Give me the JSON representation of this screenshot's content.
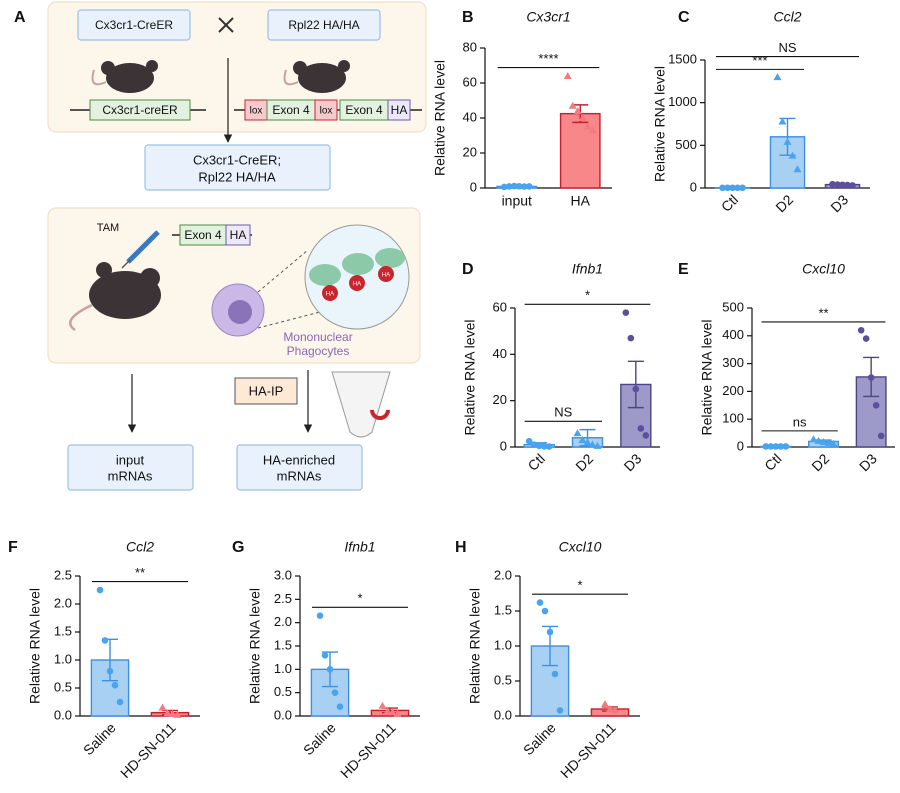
{
  "diagram": {
    "panel": "A",
    "cross": {
      "left": "Cx3cr1-CreER",
      "right": "Rpl22 HA/HA"
    },
    "construct_left": "Cx3cr1-creER",
    "construct_right": [
      "lox",
      "Exon 4",
      "lox",
      "Exon 4",
      "HA"
    ],
    "offspring": [
      "Cx3cr1-CreER;",
      "Rpl22 HA/HA"
    ],
    "treatment": "TAM",
    "tag_construct": [
      "Exon 4",
      "HA"
    ],
    "ribosome_tags": [
      "HA",
      "HA",
      "HA"
    ],
    "cell_label": [
      "Mononuclear",
      "Phagocytes"
    ],
    "ip": "HA-IP",
    "outputs": [
      [
        "input",
        "mRNAs"
      ],
      [
        "HA-enriched",
        "mRNAs"
      ]
    ]
  },
  "chart_data": [
    {
      "type": "bar",
      "panel": "B",
      "title": "Cx3cr1",
      "ylabel": "Relative RNA level",
      "categories": [
        "input",
        "HA"
      ],
      "values": [
        0.9,
        42.5
      ],
      "errors": [
        0.2,
        5
      ],
      "points": [
        [
          0.6,
          0.9,
          1.1,
          1.0,
          0.8,
          0.9
        ],
        [
          64,
          47,
          44,
          40,
          35,
          33
        ]
      ],
      "fills": [
        "#bfe0fb",
        "#f8878a"
      ],
      "strokes": [
        "#3d8fe0",
        "#c81e2a"
      ],
      "point_colors": [
        "#4aa3ef",
        "#f47a82"
      ],
      "markers": [
        "circle",
        "triangle"
      ],
      "ylim": [
        0,
        80
      ],
      "yticks": [
        0,
        20,
        40,
        60,
        80
      ],
      "significance": [
        {
          "from": 0,
          "to": 1,
          "label": "****"
        }
      ]
    },
    {
      "type": "bar",
      "panel": "C",
      "title": "Ccl2",
      "ylabel": "Relative RNA level",
      "categories": [
        "Ctl",
        "D2",
        "D3"
      ],
      "values": [
        3,
        600,
        40
      ],
      "errors": [
        1,
        215,
        8
      ],
      "points": [
        [
          3,
          3,
          3,
          3,
          3
        ],
        [
          1300,
          780,
          540,
          380,
          220
        ],
        [
          45,
          40,
          38,
          35,
          30
        ]
      ],
      "fills": [
        "#bfe0fb",
        "#a8d0f2",
        "#9d99c9"
      ],
      "strokes": [
        "#3d8fe0",
        "#3d8fe0",
        "#4b4583"
      ],
      "point_colors": [
        "#4aa3ef",
        "#4aa3ef",
        "#5c4f9c"
      ],
      "markers": [
        "circle",
        "triangle",
        "circle"
      ],
      "ylim": [
        0,
        1500
      ],
      "yticks": [
        0,
        500,
        1000,
        1500
      ],
      "significance": [
        {
          "from": 0,
          "to": 1,
          "label": "***"
        },
        {
          "from": 0,
          "to": 2,
          "label": "NS"
        }
      ]
    },
    {
      "type": "bar",
      "panel": "D",
      "title": "Ifnb1",
      "ylabel": "Relative RNA level",
      "categories": [
        "Ctl",
        "D2",
        "D3"
      ],
      "values": [
        1,
        4,
        27
      ],
      "errors": [
        0.8,
        3.5,
        10
      ],
      "points": [
        [
          2.5,
          1,
          0.5,
          0.3,
          0.2
        ],
        [
          6,
          3,
          2,
          1,
          0.5
        ],
        [
          58,
          47,
          25,
          8,
          5
        ]
      ],
      "fills": [
        "#bfe0fb",
        "#a8d0f2",
        "#9d99c9"
      ],
      "strokes": [
        "#3d8fe0",
        "#3d8fe0",
        "#4b4583"
      ],
      "point_colors": [
        "#4aa3ef",
        "#4aa3ef",
        "#5c4f9c"
      ],
      "markers": [
        "circle",
        "triangle",
        "circle"
      ],
      "ylim": [
        0,
        60
      ],
      "yticks": [
        0,
        20,
        40,
        60
      ],
      "significance": [
        {
          "from": 0,
          "to": 1,
          "label": "NS"
        },
        {
          "from": 0,
          "to": 2,
          "label": "*"
        }
      ]
    },
    {
      "type": "bar",
      "panel": "E",
      "title": "Cxcl10",
      "ylabel": "Relative RNA level",
      "categories": [
        "Ctl",
        "D2",
        "D3"
      ],
      "values": [
        2,
        20,
        252
      ],
      "errors": [
        0.5,
        5,
        70
      ],
      "points": [
        [
          2,
          2,
          2,
          2,
          2
        ],
        [
          28,
          22,
          18,
          15,
          12
        ],
        [
          420,
          390,
          250,
          150,
          40
        ]
      ],
      "fills": [
        "#bfe0fb",
        "#a8d0f2",
        "#9d99c9"
      ],
      "strokes": [
        "#3d8fe0",
        "#3d8fe0",
        "#4b4583"
      ],
      "point_colors": [
        "#4aa3ef",
        "#4aa3ef",
        "#5c4f9c"
      ],
      "markers": [
        "circle",
        "triangle",
        "circle"
      ],
      "ylim": [
        0,
        500
      ],
      "yticks": [
        0,
        100,
        200,
        300,
        400,
        500
      ],
      "significance": [
        {
          "from": 0,
          "to": 1,
          "label": "ns"
        },
        {
          "from": 0,
          "to": 2,
          "label": "**"
        }
      ]
    },
    {
      "type": "bar",
      "panel": "F",
      "title": "Ccl2",
      "ylabel": "Relative RNA level",
      "categories": [
        "Saline",
        "HD-SN-011"
      ],
      "values": [
        1.0,
        0.06
      ],
      "errors": [
        0.37,
        0.04
      ],
      "points": [
        [
          2.25,
          1.35,
          0.8,
          0.55,
          0.25
        ],
        [
          0.15,
          0.05,
          0.04,
          0.02
        ]
      ],
      "fills": [
        "#a8d0f2",
        "#f8878a"
      ],
      "strokes": [
        "#3d8fe0",
        "#c81e2a"
      ],
      "point_colors": [
        "#4aa3ef",
        "#f47a82"
      ],
      "markers": [
        "circle",
        "triangle"
      ],
      "ylim": [
        0,
        2.5
      ],
      "yticks": [
        {
          "value": 0,
          "label": "0.0"
        },
        0.5,
        {
          "value": 1,
          "label": "1.0"
        },
        1.5,
        {
          "value": 2,
          "label": "2.0"
        },
        2.5
      ],
      "significance": [
        {
          "from": 0,
          "to": 1,
          "label": "**"
        }
      ]
    },
    {
      "type": "bar",
      "panel": "G",
      "title": "Ifnb1",
      "ylabel": "Relative RNA level",
      "categories": [
        "Saline",
        "HD-SN-011"
      ],
      "values": [
        1.0,
        0.12
      ],
      "errors": [
        0.37,
        0.05
      ],
      "points": [
        [
          2.15,
          1.3,
          1.0,
          0.5,
          0.2
        ],
        [
          0.22,
          0.1,
          0.08,
          0.05
        ]
      ],
      "fills": [
        "#a8d0f2",
        "#f8878a"
      ],
      "strokes": [
        "#3d8fe0",
        "#c81e2a"
      ],
      "point_colors": [
        "#4aa3ef",
        "#f47a82"
      ],
      "markers": [
        "circle",
        "triangle"
      ],
      "ylim": [
        0,
        3
      ],
      "yticks": [
        {
          "value": 0,
          "label": "0.0"
        },
        0.5,
        {
          "value": 1,
          "label": "1.0"
        },
        1.5,
        {
          "value": 2,
          "label": "2.0"
        },
        2.5,
        {
          "value": 3,
          "label": "3.0"
        }
      ],
      "significance": [
        {
          "from": 0,
          "to": 1,
          "label": "*"
        }
      ]
    },
    {
      "type": "bar",
      "panel": "H",
      "title": "Cxcl10",
      "ylabel": "Relative RNA level",
      "categories": [
        "Saline",
        "HD-SN-011"
      ],
      "values": [
        1.0,
        0.1
      ],
      "errors": [
        0.28,
        0.03
      ],
      "points": [
        [
          1.62,
          1.5,
          1.2,
          0.6,
          0.08
        ],
        [
          0.17,
          0.1,
          0.08
        ]
      ],
      "fills": [
        "#a8d0f2",
        "#f8878a"
      ],
      "strokes": [
        "#3d8fe0",
        "#c81e2a"
      ],
      "point_colors": [
        "#4aa3ef",
        "#f47a82"
      ],
      "markers": [
        "circle",
        "triangle"
      ],
      "ylim": [
        0,
        2
      ],
      "yticks": [
        {
          "value": 0,
          "label": "0.0"
        },
        0.5,
        {
          "value": 1,
          "label": "1.0"
        },
        1.5,
        {
          "value": 2,
          "label": "2.0"
        }
      ],
      "significance": [
        {
          "from": 0,
          "to": 1,
          "label": "*"
        }
      ]
    }
  ]
}
